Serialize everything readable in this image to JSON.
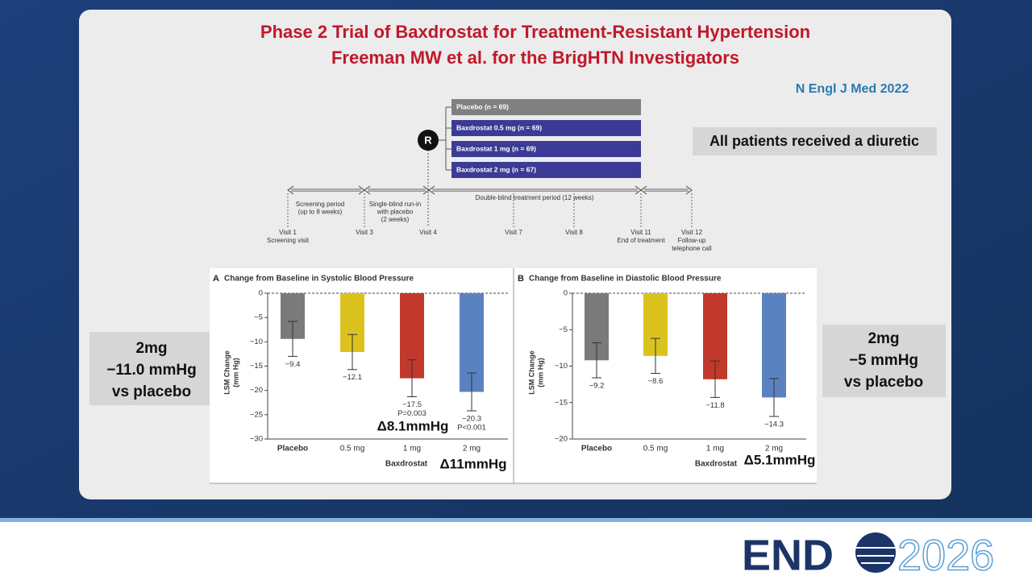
{
  "slide": {
    "title_lines": [
      "Phase 2 Trial of Baxdrostat for Treatment-Resistant Hypertension",
      "Freeman MW et al. for the BrigHTN Investigators"
    ],
    "citation": "N Engl J Med 2022",
    "note": "All patients received a diuretic",
    "left_box": [
      "2mg",
      "−11.0 mmHg",
      "vs placebo"
    ],
    "right_box": [
      "2mg",
      "−5 mmHg",
      "vs placebo"
    ],
    "logo_left": "END",
    "logo_right": "2026"
  },
  "design": {
    "randomization": "R",
    "arms": [
      "Placebo (n = 69)",
      "Baxdrostat 0.5 mg (n = 69)",
      "Baxdrostat 1 mg (n = 69)",
      "Baxdrostat 2 mg (n = 67)"
    ],
    "arm_colors": [
      "#808080",
      "#3b3b96",
      "#3b3b96",
      "#3b3b96"
    ],
    "periods": [
      [
        "Screening period",
        "(up to 8 weeks)"
      ],
      [
        "Single-blind run-in",
        "with placebo",
        "(2 weeks)"
      ],
      [
        "Double-blind treatment period (12 weeks)"
      ]
    ],
    "visits": [
      [
        "Visit 1",
        "Screening visit"
      ],
      [
        "Visit 3"
      ],
      [
        "Visit 4"
      ],
      [
        "Visit 7"
      ],
      [
        "Visit 8"
      ],
      [
        "Visit 11",
        "End of treatment"
      ],
      [
        "Visit 12",
        "Follow-up",
        "telephone call"
      ]
    ]
  },
  "chart_data": [
    {
      "type": "bar",
      "panel": "A",
      "title": "Change from Baseline in Systolic Blood Pressure",
      "y_label": [
        "LSM Change",
        "(mm Hg)"
      ],
      "x_group_label": "Baxdrostat",
      "categories": [
        "Placebo",
        "0.5 mg",
        "1 mg",
        "2 mg"
      ],
      "values": [
        -9.4,
        -12.1,
        -17.5,
        -20.3
      ],
      "value_labels": [
        "−9.4",
        "−12.1",
        "−17.5",
        "−20.3"
      ],
      "errors": [
        3.6,
        3.6,
        3.8,
        3.9
      ],
      "p_values": [
        null,
        null,
        "P=0.003",
        "P<0.001"
      ],
      "colors": [
        "#7a7a7a",
        "#dcc21e",
        "#c0392b",
        "#5b82c0"
      ],
      "ylim": [
        -30,
        0
      ],
      "yticks": [
        0,
        {
          "value": -5,
          "label": "−5"
        },
        {
          "value": -10,
          "label": "−10"
        },
        {
          "value": -15,
          "label": "−15"
        },
        {
          "value": -20,
          "label": "−20"
        },
        {
          "value": -25,
          "label": "−25"
        },
        {
          "value": -30,
          "label": "−30"
        }
      ],
      "annotations": [
        "Δ8.1mmHg",
        "Δ11mmHg"
      ]
    },
    {
      "type": "bar",
      "panel": "B",
      "title": "Change from Baseline in Diastolic Blood Pressure",
      "y_label": [
        "LSM Change",
        "(mm Hg)"
      ],
      "x_group_label": "Baxdrostat",
      "categories": [
        "Placebo",
        "0.5 mg",
        "1 mg",
        "2 mg"
      ],
      "values": [
        -9.2,
        -8.6,
        -11.8,
        -14.3
      ],
      "value_labels": [
        "−9.2",
        "−8.6",
        "−11.8",
        "−14.3"
      ],
      "errors": [
        2.4,
        2.4,
        2.5,
        2.6
      ],
      "colors": [
        "#7a7a7a",
        "#dcc21e",
        "#c0392b",
        "#5b82c0"
      ],
      "ylim": [
        -20,
        0
      ],
      "yticks": [
        0,
        {
          "value": -5,
          "label": "−5"
        },
        {
          "value": -10,
          "label": "−10"
        },
        {
          "value": -15,
          "label": "−15"
        },
        {
          "value": -20,
          "label": "−20"
        }
      ],
      "annotations": [
        "Δ5.1mmHg"
      ]
    }
  ]
}
